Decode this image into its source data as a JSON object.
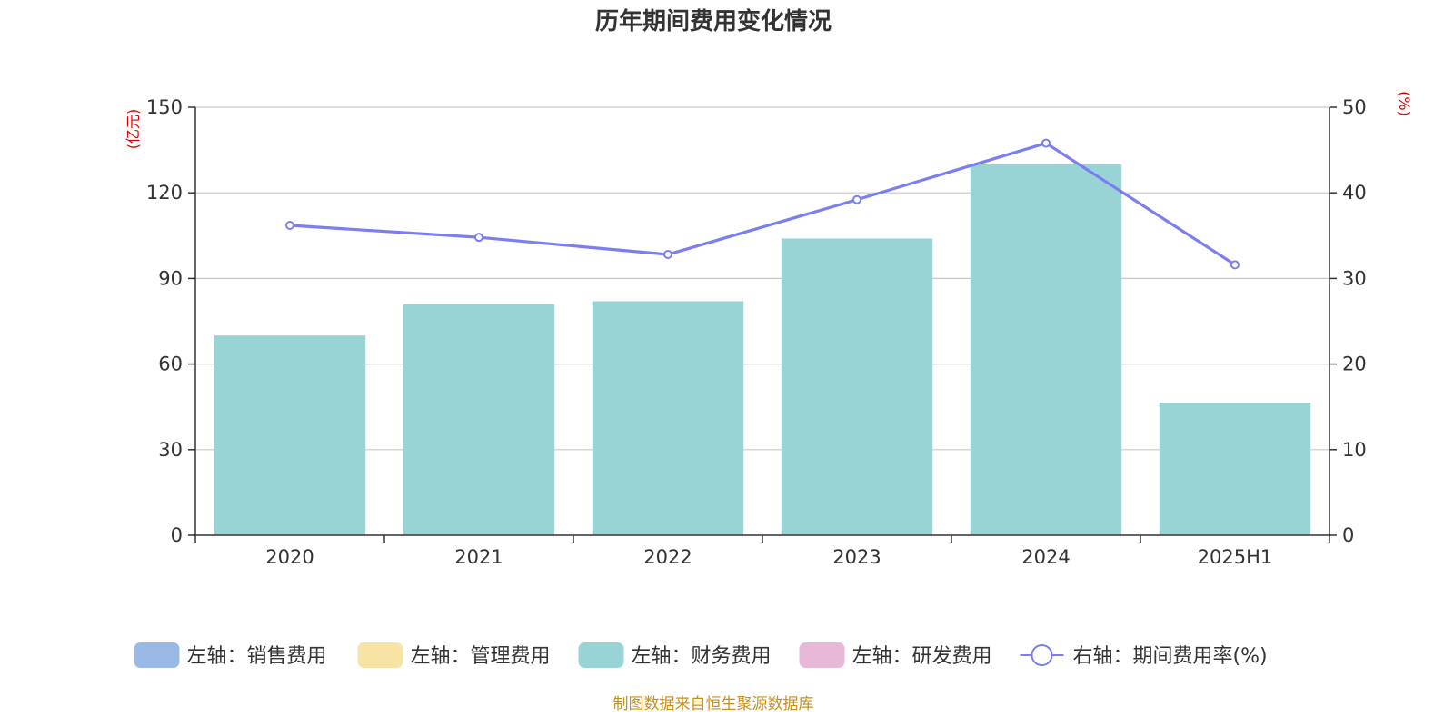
{
  "chart_data": {
    "type": "bar",
    "title": "历年期间费用变化情况",
    "categories": [
      "2020",
      "2021",
      "2022",
      "2023",
      "2024",
      "2025H1"
    ],
    "left_axis": {
      "unit": "(亿元)",
      "ylim": [
        0,
        150
      ],
      "ticks": [
        "0",
        "30",
        "60",
        "90",
        "120",
        "150"
      ]
    },
    "right_axis": {
      "unit": "(%)",
      "ylim": [
        0,
        50
      ],
      "ticks": [
        "0",
        "10",
        "20",
        "30",
        "40",
        "50"
      ]
    },
    "series": [
      {
        "name": "左轴：销售费用",
        "type": "bar",
        "axis": "left",
        "color": "#9ab8e4",
        "values": [
          0,
          0,
          0,
          0,
          0,
          0
        ]
      },
      {
        "name": "左轴：管理费用",
        "type": "bar",
        "axis": "left",
        "color": "#f7e3a3",
        "values": [
          0,
          0,
          0,
          0,
          0,
          0
        ]
      },
      {
        "name": "左轴：财务费用",
        "type": "bar",
        "axis": "left",
        "color": "#98d4d5",
        "values": [
          70,
          81,
          82,
          104,
          130,
          46.5
        ]
      },
      {
        "name": "左轴：研发费用",
        "type": "bar",
        "axis": "left",
        "color": "#e8b8d8",
        "values": [
          0,
          0,
          0,
          0,
          0,
          0
        ]
      },
      {
        "name": "右轴：期间费用率(%)",
        "type": "line",
        "axis": "right",
        "color": "#7a7ef0",
        "values": [
          36.2,
          34.8,
          32.8,
          39.2,
          45.8,
          31.6
        ]
      }
    ],
    "grid": true,
    "legend_position": "bottom"
  },
  "source_note": "制图数据来自恒生聚源数据库"
}
